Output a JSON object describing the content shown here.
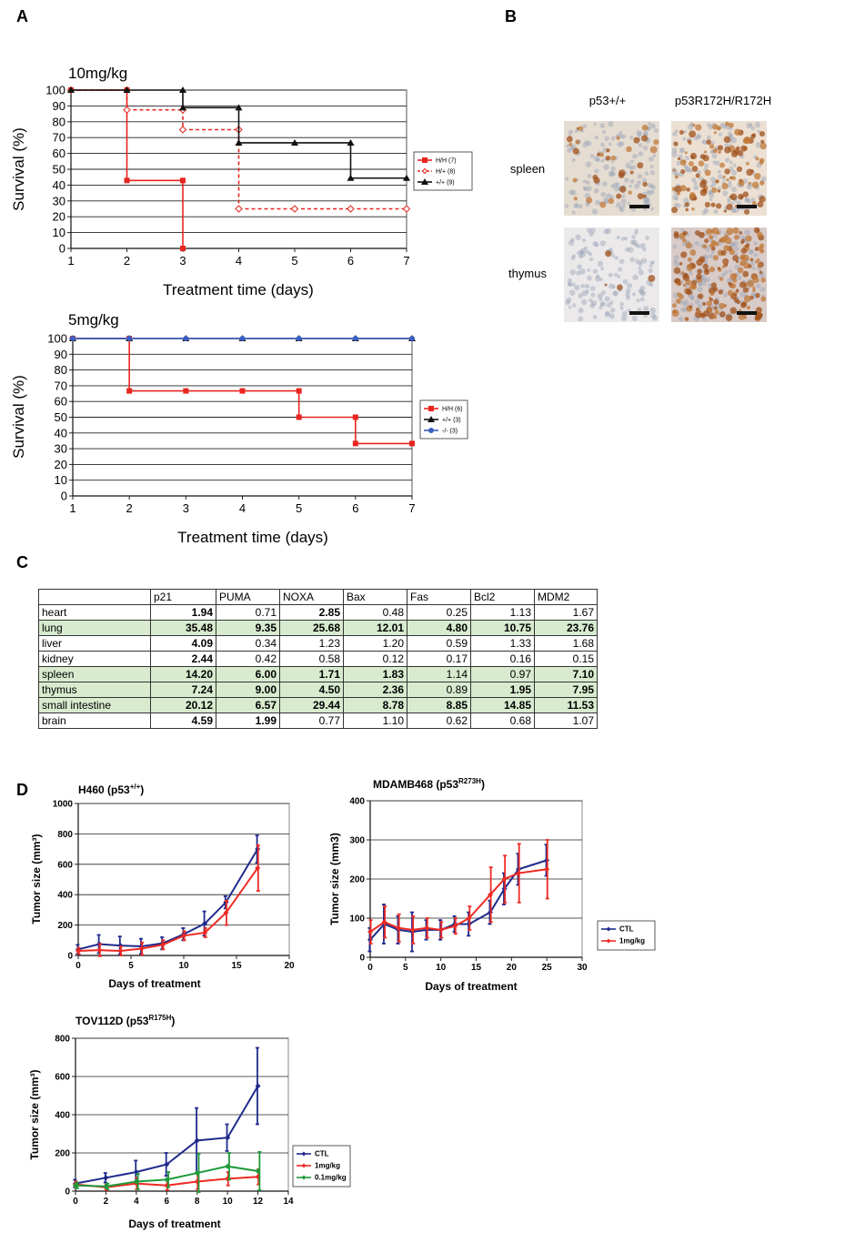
{
  "panel_labels": [
    "A",
    "B",
    "C",
    "D"
  ],
  "chart_data": [
    {
      "type": "step",
      "title": "10mg/kg",
      "xlabel": "Treatment time (days)",
      "ylabel": "Survival (%)",
      "x": [
        1,
        2,
        3,
        4,
        5,
        6,
        7
      ],
      "xlim": [
        1,
        7
      ],
      "xticks": [
        1,
        2,
        3,
        4,
        5,
        6,
        7
      ],
      "ylim": [
        0,
        100
      ],
      "yticks": [
        0,
        10,
        20,
        30,
        40,
        50,
        60,
        70,
        80,
        90,
        100
      ],
      "grid": true,
      "series": [
        {
          "name": "H/H (7)",
          "color": "#e8251f",
          "marker": "square",
          "linestyle": "solid",
          "values": [
            100,
            42.9,
            0,
            null,
            null,
            null,
            null
          ]
        },
        {
          "name": "H/+ (8)",
          "color": "#e8251f",
          "marker": "diamond-open",
          "linestyle": "dashed",
          "values": [
            100,
            87.5,
            75,
            25,
            25,
            25,
            25
          ]
        },
        {
          "name": "+/+ (9)",
          "color": "#111111",
          "marker": "triangle",
          "linestyle": "solid",
          "values": [
            100,
            100,
            88.9,
            66.7,
            66.7,
            44.4,
            44.4
          ]
        }
      ]
    },
    {
      "type": "step",
      "title": "5mg/kg",
      "xlabel": "Treatment time (days)",
      "ylabel": "Survival (%)",
      "x": [
        1,
        2,
        3,
        4,
        5,
        6,
        7
      ],
      "xlim": [
        1,
        7
      ],
      "xticks": [
        1,
        2,
        3,
        4,
        5,
        6,
        7
      ],
      "ylim": [
        0,
        100
      ],
      "yticks": [
        0,
        10,
        20,
        30,
        40,
        50,
        60,
        70,
        80,
        90,
        100
      ],
      "grid": true,
      "series": [
        {
          "name": "H/H (6)",
          "color": "#e8251f",
          "marker": "square",
          "linestyle": "solid",
          "values": [
            100,
            66.7,
            66.7,
            66.7,
            50,
            33.3,
            33.3
          ]
        },
        {
          "name": "+/+ (3)",
          "color": "#111111",
          "marker": "triangle",
          "linestyle": "solid",
          "values": [
            100,
            100,
            100,
            100,
            100,
            100,
            100
          ]
        },
        {
          "name": "-/- (3)",
          "color": "#3b5fc0",
          "marker": "circle",
          "linestyle": "solid",
          "values": [
            100,
            100,
            100,
            100,
            100,
            100,
            100
          ]
        }
      ]
    },
    {
      "type": "line",
      "title": "H460 (p53",
      "title_superscript": "+/+",
      "title_suffix": ")",
      "xlabel": "Days of treatment",
      "ylabel": "Tumor size (mm³)",
      "x": [
        0,
        2,
        4,
        6,
        8,
        10,
        12,
        14,
        17
      ],
      "xlim": [
        0,
        20
      ],
      "xticks": [
        0,
        5,
        10,
        15,
        20
      ],
      "ylim": [
        0,
        1000
      ],
      "yticks": [
        0,
        200,
        400,
        600,
        800,
        1000
      ],
      "grid": true,
      "series": [
        {
          "color": "#1f2a8c",
          "marker": "diamond",
          "values": [
            40,
            75,
            65,
            60,
            80,
            140,
            210,
            350,
            700
          ],
          "errors": [
            30,
            60,
            60,
            50,
            40,
            40,
            80,
            40,
            90
          ]
        },
        {
          "color": "#ee2a24",
          "marker": "diamond",
          "values": [
            30,
            35,
            30,
            45,
            70,
            130,
            150,
            280,
            575
          ],
          "errors": [
            20,
            40,
            30,
            40,
            30,
            30,
            30,
            80,
            150
          ]
        }
      ]
    },
    {
      "type": "line",
      "title": "MDAMB468 (p53",
      "title_superscript": "R273H",
      "title_suffix": ")",
      "xlabel": "Days of treatment",
      "ylabel": "Tumor size (mm3)",
      "x": [
        0,
        2,
        4,
        6,
        8,
        10,
        12,
        14,
        17,
        19,
        21,
        25
      ],
      "xlim": [
        0,
        30
      ],
      "xticks": [
        0,
        5,
        10,
        15,
        20,
        25,
        30
      ],
      "ylim": [
        0,
        400
      ],
      "yticks": [
        0,
        100,
        200,
        300,
        400
      ],
      "grid": true,
      "series": [
        {
          "name": "CTL",
          "color": "#1f2a8c",
          "marker": "diamond",
          "values": [
            45,
            85,
            70,
            65,
            70,
            70,
            85,
            85,
            115,
            175,
            225,
            248
          ],
          "errors": [
            30,
            50,
            35,
            50,
            25,
            25,
            20,
            30,
            30,
            40,
            40,
            40
          ]
        },
        {
          "name": "1mg/kg",
          "color": "#ee2a24",
          "marker": "diamond",
          "values": [
            65,
            90,
            75,
            70,
            75,
            70,
            80,
            100,
            160,
            200,
            215,
            225
          ],
          "errors": [
            30,
            40,
            35,
            35,
            25,
            20,
            20,
            30,
            70,
            60,
            75,
            75
          ]
        }
      ]
    },
    {
      "type": "line",
      "title": "TOV112D (p53",
      "title_superscript": "R175H",
      "title_suffix": ")",
      "xlabel": "Days of treatment",
      "ylabel": "Tumor size (mm³)",
      "x": [
        0,
        2,
        4,
        6,
        8,
        10,
        12
      ],
      "xlim": [
        0,
        14
      ],
      "xticks": [
        0,
        2,
        4,
        6,
        8,
        10,
        12,
        14
      ],
      "ylim": [
        0,
        800
      ],
      "yticks": [
        0,
        200,
        400,
        600,
        800
      ],
      "grid": true,
      "series": [
        {
          "name": "CTL",
          "color": "#1f2a8c",
          "marker": "diamond",
          "values": [
            40,
            70,
            100,
            140,
            265,
            280,
            550
          ],
          "errors": [
            20,
            25,
            60,
            60,
            170,
            70,
            200
          ]
        },
        {
          "name": "1mg/kg",
          "color": "#ee2a24",
          "marker": "diamond",
          "values": [
            35,
            20,
            40,
            30,
            50,
            65,
            75
          ],
          "errors": [
            15,
            15,
            30,
            25,
            40,
            35,
            40
          ]
        },
        {
          "name": "0.1mg/kg",
          "color": "#1f9a3a",
          "marker": "diamond",
          "values": [
            30,
            25,
            50,
            60,
            95,
            130,
            105
          ],
          "errors": [
            15,
            15,
            40,
            40,
            100,
            70,
            100
          ]
        }
      ]
    }
  ],
  "histology": {
    "columns": [
      "p53+/+",
      "p53R172H/R172H"
    ],
    "rows": [
      "spleen",
      "thymus"
    ]
  },
  "table": {
    "headers": [
      "p21",
      "PUMA",
      "NOXA",
      "Bax",
      "Fas",
      "Bcl2",
      "MDM2"
    ],
    "rows": [
      {
        "name": "heart",
        "highlight": false,
        "values": [
          "1.94",
          "0.71",
          "2.85",
          "0.48",
          "0.25",
          "1.13",
          "1.67"
        ],
        "bold": [
          true,
          false,
          true,
          false,
          false,
          false,
          false
        ]
      },
      {
        "name": "lung",
        "highlight": true,
        "values": [
          "35.48",
          "9.35",
          "25.68",
          "12.01",
          "4.80",
          "10.75",
          "23.76"
        ],
        "bold": [
          true,
          true,
          true,
          true,
          true,
          true,
          true
        ]
      },
      {
        "name": "liver",
        "highlight": false,
        "values": [
          "4.09",
          "0.34",
          "1.23",
          "1.20",
          "0.59",
          "1.33",
          "1.68"
        ],
        "bold": [
          true,
          false,
          false,
          false,
          false,
          false,
          false
        ]
      },
      {
        "name": "kidney",
        "highlight": false,
        "values": [
          "2.44",
          "0.42",
          "0.58",
          "0.12",
          "0.17",
          "0.16",
          "0.15"
        ],
        "bold": [
          true,
          false,
          false,
          false,
          false,
          false,
          false
        ]
      },
      {
        "name": "spleen",
        "highlight": true,
        "values": [
          "14.20",
          "6.00",
          "1.71",
          "1.83",
          "1.14",
          "0.97",
          "7.10"
        ],
        "bold": [
          true,
          true,
          true,
          true,
          false,
          false,
          true
        ]
      },
      {
        "name": "thymus",
        "highlight": true,
        "values": [
          "7.24",
          "9.00",
          "4.50",
          "2.36",
          "0.89",
          "1.95",
          "7.95"
        ],
        "bold": [
          true,
          true,
          true,
          true,
          false,
          true,
          true
        ]
      },
      {
        "name": "small intestine",
        "highlight": true,
        "values": [
          "20.12",
          "6.57",
          "29.44",
          "8.78",
          "8.85",
          "14.85",
          "11.53"
        ],
        "bold": [
          true,
          true,
          true,
          true,
          true,
          true,
          true
        ]
      },
      {
        "name": "brain",
        "highlight": false,
        "values": [
          "4.59",
          "1.99",
          "0.77",
          "1.10",
          "0.62",
          "0.68",
          "1.07"
        ],
        "bold": [
          true,
          true,
          false,
          false,
          false,
          false,
          false
        ]
      }
    ]
  }
}
